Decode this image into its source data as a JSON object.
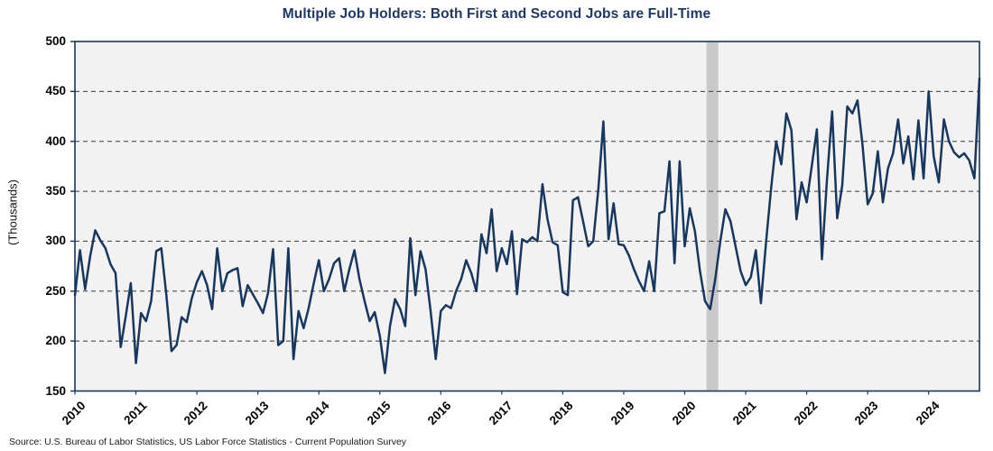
{
  "title": "Multiple Job Holders: Both First and Second Jobs are Full-Time",
  "y_axis": {
    "label": "(Thousands)",
    "ticks": [
      500,
      450,
      400,
      350,
      300,
      250,
      200,
      150
    ],
    "min": 150,
    "max": 500,
    "gridline_values": [
      450,
      400,
      350,
      300,
      250,
      200
    ]
  },
  "x_axis": {
    "years": [
      2010,
      2011,
      2012,
      2013,
      2014,
      2015,
      2016,
      2017,
      2018,
      2019,
      2020,
      2021,
      2022,
      2023,
      2024
    ]
  },
  "source": "Source: U.S. Bureau of Labor Statistics, US Labor Force Statistics - Current Population Survey",
  "colors": {
    "line": "#17375e",
    "title": "#1f3864",
    "plot_background": "#f2f2f2",
    "plot_border": "#17375e",
    "gridline": "#3a3a3a",
    "recession_band": "#c9c9c9",
    "tick": "#17375e"
  },
  "recession_band": {
    "start_index": 124.3,
    "end_index": 126.6,
    "note": "shaded vertical band, 2020 recession"
  },
  "chart_data": {
    "type": "line",
    "title": "Multiple Job Holders: Both First and Second Jobs are Full-Time",
    "xlabel": "",
    "ylabel": "(Thousands)",
    "ylim": [
      150,
      500
    ],
    "grid": "horizontal-dashed",
    "legend": "none",
    "frequency": "monthly",
    "start": "2010-01",
    "end": "2024-11",
    "series": [
      {
        "name": "Multiple job holders, both first and second jobs full-time",
        "values": [
          246,
          291,
          252,
          285,
          311,
          301,
          293,
          277,
          268,
          194,
          225,
          258,
          178,
          228,
          220,
          240,
          290,
          293,
          246,
          190,
          196,
          224,
          219,
          243,
          259,
          270,
          256,
          232,
          293,
          250,
          268,
          271,
          273,
          235,
          256,
          247,
          238,
          228,
          248,
          292,
          196,
          200,
          293,
          182,
          230,
          213,
          233,
          258,
          281,
          250,
          262,
          278,
          283,
          250,
          272,
          291,
          262,
          240,
          220,
          229,
          205,
          168,
          215,
          242,
          232,
          215,
          303,
          246,
          290,
          272,
          230,
          182,
          230,
          236,
          233,
          250,
          262,
          281,
          268,
          250,
          307,
          288,
          332,
          270,
          293,
          277,
          310,
          247,
          302,
          299,
          304,
          300,
          357,
          322,
          299,
          296,
          249,
          246,
          341,
          344,
          320,
          295,
          300,
          352,
          420,
          302,
          338,
          297,
          296,
          286,
          272,
          260,
          250,
          280,
          250,
          328,
          330,
          380,
          278,
          380,
          295,
          333,
          310,
          270,
          240,
          232,
          262,
          300,
          332,
          320,
          295,
          270,
          256,
          264,
          291,
          238,
          299,
          353,
          400,
          377,
          428,
          411,
          322,
          359,
          339,
          375,
          412,
          282,
          362,
          430,
          323,
          356,
          435,
          428,
          441,
          396,
          337,
          348,
          390,
          339,
          373,
          388,
          422,
          378,
          405,
          362,
          421,
          363,
          450,
          385,
          359,
          422,
          400,
          389,
          384,
          388,
          381,
          363,
          463
        ]
      }
    ]
  }
}
